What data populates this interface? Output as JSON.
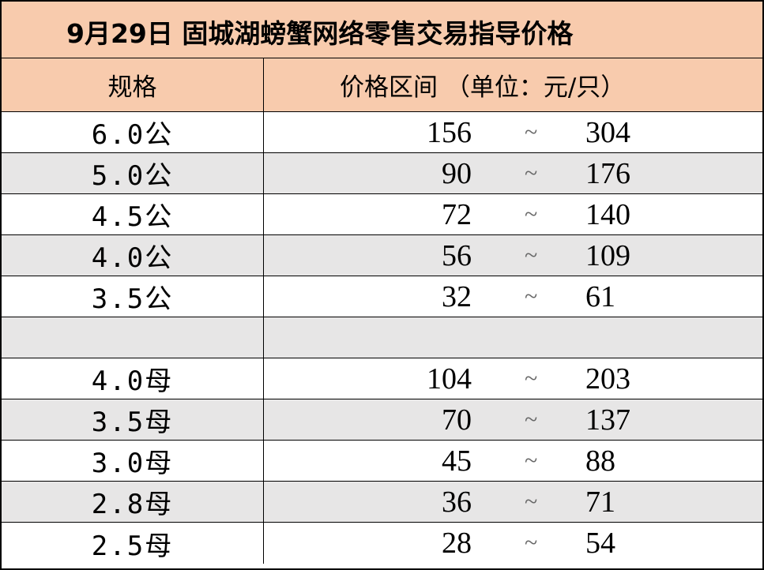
{
  "title": "9月29日 固城湖螃蟹网络零售交易指导价格",
  "header": {
    "spec_label": "规格",
    "range_label": "价格区间 （单位：元/只）"
  },
  "separator": "~",
  "rows": [
    {
      "spec": "6.0公",
      "low": "156",
      "high": "304"
    },
    {
      "spec": "5.0公",
      "low": "90",
      "high": "176"
    },
    {
      "spec": "4.5公",
      "low": "72",
      "high": "140"
    },
    {
      "spec": "4.0公",
      "low": "56",
      "high": "109"
    },
    {
      "spec": "3.5公",
      "low": "32",
      "high": "61"
    },
    {
      "spec": "",
      "low": "",
      "high": ""
    },
    {
      "spec": "4.0母",
      "low": "104",
      "high": "203"
    },
    {
      "spec": "3.5母",
      "low": "70",
      "high": "137"
    },
    {
      "spec": "3.0母",
      "low": "45",
      "high": "88"
    },
    {
      "spec": "2.8母",
      "low": "36",
      "high": "71"
    },
    {
      "spec": "2.5母",
      "low": "28",
      "high": "54"
    }
  ]
}
